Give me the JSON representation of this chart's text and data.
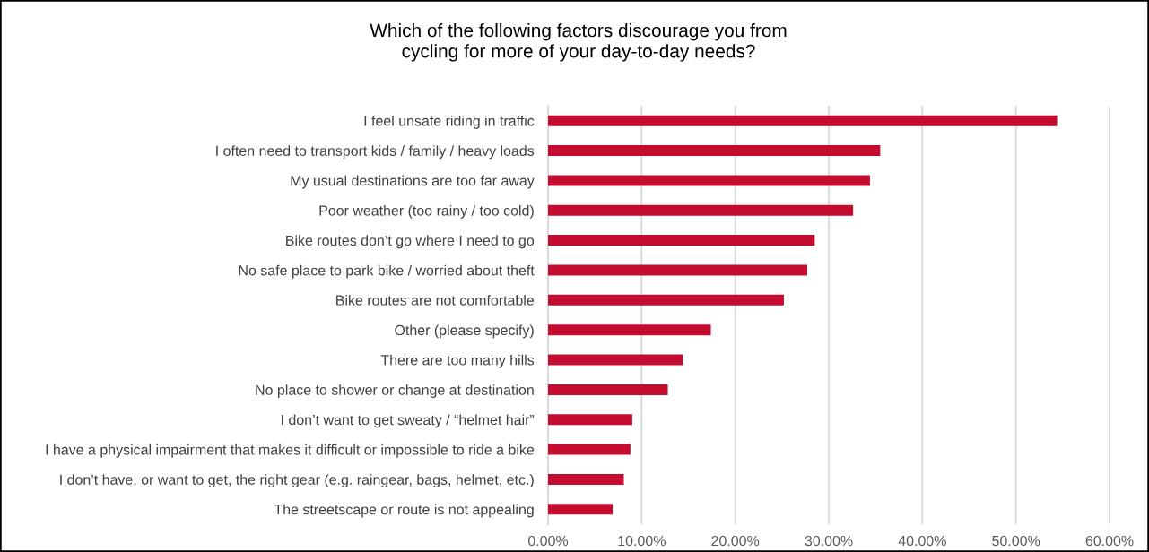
{
  "chart_data": {
    "type": "bar",
    "orientation": "horizontal",
    "title": "Which of the following factors discourage you from\ncycling for more of your day-to-day needs?",
    "categories": [
      "I feel unsafe riding in traffic",
      "I often need to transport kids / family / heavy loads",
      "My usual destinations are too far away",
      "Poor weather (too rainy / too cold)",
      "Bike routes don’t go where I need to go",
      "No safe place to park bike / worried about theft",
      "Bike routes are not comfortable",
      "Other (please specify)",
      "There are too many hills",
      "No place to shower or change at destination",
      "I don’t want to get sweaty / “helmet hair”",
      "I have a physical impairment that makes it difficult or impossible to ride a bike",
      "I don’t have, or want to get, the right gear (e.g. raingear, bags, helmet, etc.)",
      "The streetscape or route is not appealing"
    ],
    "values": [
      54.4,
      35.5,
      34.4,
      32.6,
      28.5,
      27.7,
      25.2,
      17.4,
      14.4,
      12.8,
      9.0,
      8.8,
      8.1,
      6.9
    ],
    "color": "#c40c31",
    "xlim": [
      0,
      60
    ],
    "xticks": [
      {
        "value": 0,
        "label": "0.00%"
      },
      {
        "value": 10,
        "label": "10.00%"
      },
      {
        "value": 20,
        "label": "20.00%"
      },
      {
        "value": 30,
        "label": "30.00%"
      },
      {
        "value": 40,
        "label": "40.00%"
      },
      {
        "value": 50,
        "label": "50.00%"
      },
      {
        "value": 60,
        "label": "60.00%"
      }
    ],
    "grid": "x"
  }
}
